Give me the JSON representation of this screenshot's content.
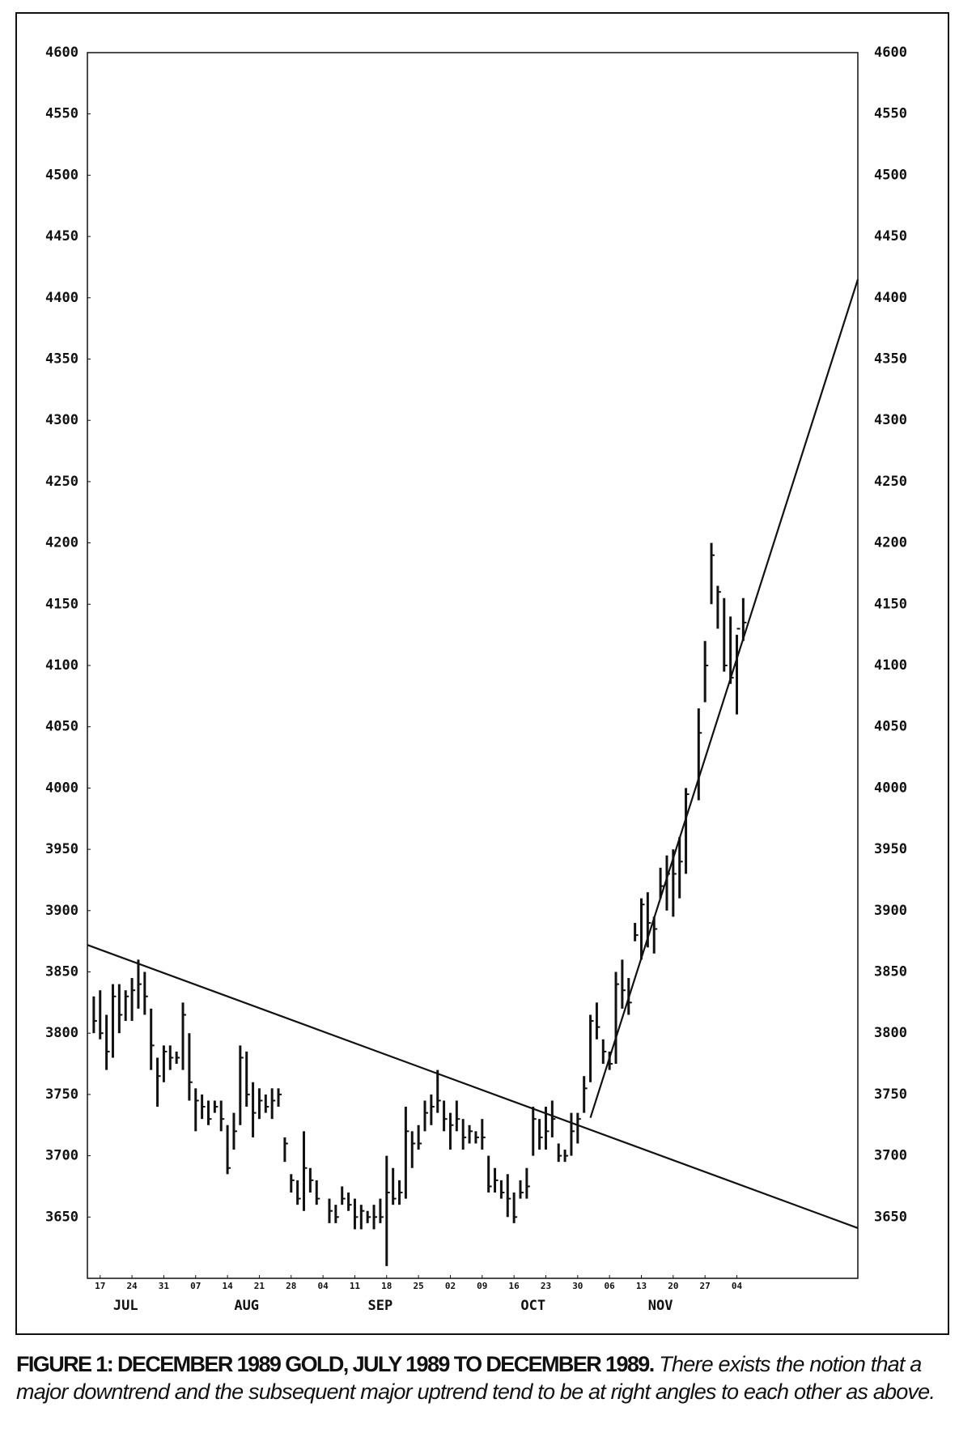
{
  "chart_data": {
    "type": "ohlc",
    "color": "#111111",
    "x": [
      "1989-07-14",
      "1989-07-17",
      "1989-07-18",
      "1989-07-19",
      "1989-07-20",
      "1989-07-21",
      "1989-07-24",
      "1989-07-25",
      "1989-07-26",
      "1989-07-27",
      "1989-07-28",
      "1989-07-31",
      "1989-08-01",
      "1989-08-02",
      "1989-08-03",
      "1989-08-04",
      "1989-08-07",
      "1989-08-08",
      "1989-08-09",
      "1989-08-10",
      "1989-08-11",
      "1989-08-14",
      "1989-08-15",
      "1989-08-16",
      "1989-08-17",
      "1989-08-18",
      "1989-08-21",
      "1989-08-22",
      "1989-08-23",
      "1989-08-24",
      "1989-08-25",
      "1989-08-28",
      "1989-08-29",
      "1989-08-30",
      "1989-08-31",
      "1989-09-01",
      "1989-09-05",
      "1989-09-06",
      "1989-09-07",
      "1989-09-08",
      "1989-09-11",
      "1989-09-12",
      "1989-09-13",
      "1989-09-14",
      "1989-09-15",
      "1989-09-18",
      "1989-09-19",
      "1989-09-20",
      "1989-09-21",
      "1989-09-22",
      "1989-09-25",
      "1989-09-26",
      "1989-09-27",
      "1989-09-28",
      "1989-09-29",
      "1989-10-02",
      "1989-10-03",
      "1989-10-04",
      "1989-10-05",
      "1989-10-06",
      "1989-10-09",
      "1989-10-10",
      "1989-10-11",
      "1989-10-12",
      "1989-10-13",
      "1989-10-16",
      "1989-10-17",
      "1989-10-18",
      "1989-10-19",
      "1989-10-20",
      "1989-10-23",
      "1989-10-24",
      "1989-10-25",
      "1989-10-26",
      "1989-10-27",
      "1989-10-30",
      "1989-10-31",
      "1989-11-01",
      "1989-11-02",
      "1989-11-03",
      "1989-11-06",
      "1989-11-07",
      "1989-11-08",
      "1989-11-09",
      "1989-11-10",
      "1989-11-13",
      "1989-11-14",
      "1989-11-15",
      "1989-11-16",
      "1989-11-17",
      "1989-11-20",
      "1989-11-21",
      "1989-11-22",
      "1989-11-24",
      "1989-11-27",
      "1989-11-28",
      "1989-11-29",
      "1989-11-30",
      "1989-12-01",
      "1989-12-04",
      "1989-12-05"
    ],
    "high": [
      3830,
      3835,
      3815,
      3840,
      3840,
      3835,
      3845,
      3860,
      3850,
      3820,
      3780,
      3790,
      3790,
      3785,
      3825,
      3800,
      3755,
      3750,
      3745,
      3745,
      3745,
      3725,
      3735,
      3790,
      3785,
      3760,
      3755,
      3750,
      3755,
      3755,
      3715,
      3685,
      3680,
      3720,
      3690,
      3680,
      3665,
      3660,
      3675,
      3670,
      3665,
      3660,
      3655,
      3660,
      3665,
      3700,
      3690,
      3680,
      3740,
      3720,
      3725,
      3745,
      3750,
      3770,
      3745,
      3735,
      3745,
      3730,
      3725,
      3720,
      3730,
      3700,
      3690,
      3680,
      3685,
      3670,
      3680,
      3690,
      3740,
      3730,
      3740,
      3745,
      3710,
      3705,
      3735,
      3735,
      3765,
      3815,
      3825,
      3795,
      3785,
      3850,
      3860,
      3845,
      3890,
      3910,
      3915,
      3895,
      3935,
      3945,
      3950,
      3960,
      4000,
      4065,
      4120,
      4200,
      4165,
      4155,
      4140,
      4125,
      4155
    ],
    "low": [
      3800,
      3795,
      3770,
      3780,
      3800,
      3810,
      3810,
      3820,
      3815,
      3770,
      3740,
      3760,
      3770,
      3775,
      3770,
      3745,
      3720,
      3730,
      3725,
      3735,
      3720,
      3685,
      3705,
      3725,
      3740,
      3715,
      3730,
      3735,
      3730,
      3740,
      3695,
      3670,
      3660,
      3655,
      3670,
      3660,
      3645,
      3645,
      3660,
      3655,
      3640,
      3640,
      3645,
      3640,
      3645,
      3610,
      3660,
      3660,
      3665,
      3690,
      3705,
      3720,
      3725,
      3735,
      3720,
      3705,
      3720,
      3705,
      3710,
      3710,
      3705,
      3670,
      3670,
      3665,
      3650,
      3645,
      3665,
      3665,
      3700,
      3705,
      3705,
      3715,
      3695,
      3695,
      3700,
      3710,
      3735,
      3760,
      3795,
      3775,
      3770,
      3775,
      3820,
      3815,
      3875,
      3860,
      3870,
      3865,
      3910,
      3900,
      3895,
      3910,
      3930,
      3990,
      4070,
      4150,
      4130,
      4095,
      4085,
      4060,
      4120
    ],
    "close": [
      3810,
      3800,
      3785,
      3830,
      3815,
      3830,
      3835,
      3840,
      3830,
      3790,
      3765,
      3785,
      3780,
      3780,
      3815,
      3760,
      3745,
      3740,
      3730,
      3740,
      3730,
      3690,
      3720,
      3780,
      3750,
      3735,
      3745,
      3740,
      3745,
      3750,
      3710,
      3680,
      3665,
      3690,
      3680,
      3665,
      3655,
      3650,
      3665,
      3660,
      3650,
      3655,
      3650,
      3650,
      3650,
      3670,
      3665,
      3670,
      3720,
      3710,
      3710,
      3735,
      3740,
      3745,
      3730,
      3725,
      3730,
      3715,
      3720,
      3715,
      3715,
      3675,
      3680,
      3670,
      3665,
      3650,
      3670,
      3675,
      3730,
      3715,
      3720,
      3730,
      3700,
      3700,
      3720,
      3730,
      3755,
      3810,
      3805,
      3785,
      3775,
      3840,
      3835,
      3825,
      3880,
      3905,
      3890,
      3885,
      3920,
      3930,
      3930,
      3940,
      3995,
      4045,
      4100,
      4190,
      4160,
      4100,
      4090,
      4130,
      4135
    ],
    "xlim": [
      "1989-07-13",
      "1989-12-29"
    ],
    "xticks": [
      {
        "value": "1989-07-17",
        "label": "17"
      },
      {
        "value": "1989-07-24",
        "label": "24"
      },
      {
        "value": "1989-07-31",
        "label": "31"
      },
      {
        "value": "1989-08-07",
        "label": "07"
      },
      {
        "value": "1989-08-14",
        "label": "14"
      },
      {
        "value": "1989-08-21",
        "label": "21"
      },
      {
        "value": "1989-08-28",
        "label": "28"
      },
      {
        "value": "1989-09-04",
        "label": "04"
      },
      {
        "value": "1989-09-11",
        "label": "11"
      },
      {
        "value": "1989-09-18",
        "label": "18"
      },
      {
        "value": "1989-09-25",
        "label": "25"
      },
      {
        "value": "1989-10-02",
        "label": "02"
      },
      {
        "value": "1989-10-09",
        "label": "09"
      },
      {
        "value": "1989-10-16",
        "label": "16"
      },
      {
        "value": "1989-10-23",
        "label": "23"
      },
      {
        "value": "1989-10-30",
        "label": "30"
      },
      {
        "value": "1989-11-06",
        "label": "06"
      },
      {
        "value": "1989-11-13",
        "label": "13"
      },
      {
        "value": "1989-11-20",
        "label": "20"
      },
      {
        "value": "1989-11-27",
        "label": "27"
      },
      {
        "value": "1989-12-04",
        "label": "04"
      }
    ],
    "month_labels": [
      {
        "value": "1989-07-21",
        "label": "JUL"
      },
      {
        "value": "1989-08-17",
        "label": "AUG"
      },
      {
        "value": "1989-09-15",
        "label": "SEP"
      },
      {
        "value": "1989-10-19",
        "label": "OCT"
      },
      {
        "value": "1989-11-16",
        "label": "NOV"
      }
    ],
    "ylim": [
      3600,
      4600
    ],
    "yticks": [
      3650,
      3700,
      3750,
      3800,
      3850,
      3900,
      3950,
      4000,
      4050,
      4100,
      4150,
      4200,
      4250,
      4300,
      4350,
      4400,
      4450,
      4500,
      4550,
      4600
    ],
    "trend_lines": [
      {
        "x": [
          "1989-07-13",
          "1989-12-29"
        ],
        "y": [
          3872,
          3641
        ]
      },
      {
        "x": [
          "1989-11-01",
          "1989-12-29"
        ],
        "y": [
          3731,
          4415
        ]
      }
    ],
    "caption": {
      "label": "FIGURE 1: DECEMBER 1989 GOLD, JULY 1989 TO DECEMBER 1989.",
      "text": "There exists the notion that a major downtrend and the subsequent major uptrend tend to be at right angles to each other as above."
    }
  }
}
